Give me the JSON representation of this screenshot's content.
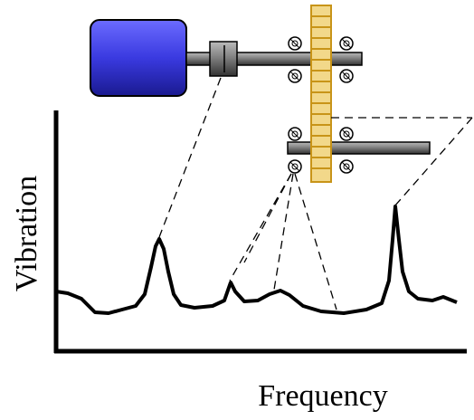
{
  "axes": {
    "y_label": "Vibration",
    "x_label": "Frequency"
  }
}
